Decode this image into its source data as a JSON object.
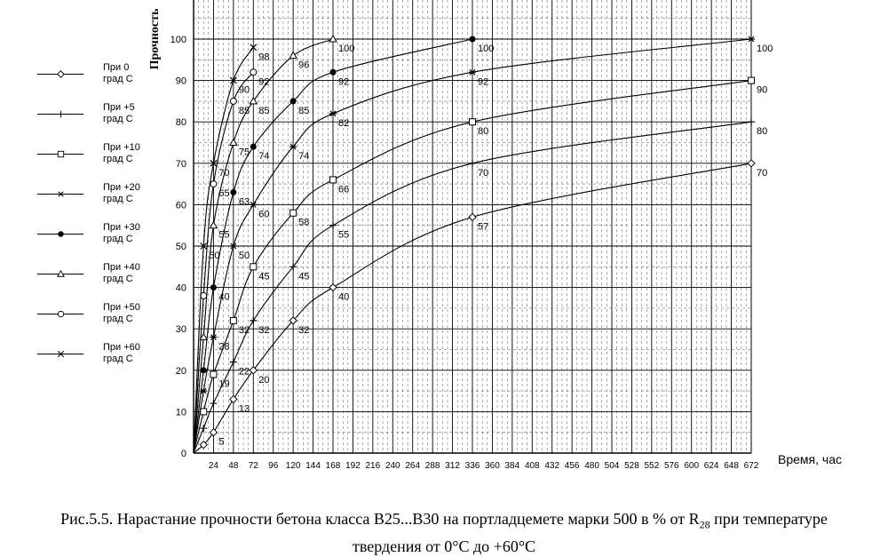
{
  "chart_data": {
    "type": "line",
    "ylabel": "Прочность",
    "xlabel": "Время, час",
    "xlim": [
      0,
      672
    ],
    "ylim": [
      0,
      100
    ],
    "x_ticks": [
      24,
      48,
      72,
      96,
      120,
      144,
      168,
      192,
      216,
      240,
      264,
      288,
      312,
      336,
      360,
      384,
      408,
      432,
      456,
      480,
      504,
      528,
      552,
      576,
      600,
      624,
      648,
      672
    ],
    "y_ticks": [
      0,
      10,
      20,
      30,
      40,
      50,
      60,
      70,
      80,
      90,
      100
    ],
    "grid": true,
    "legend_position": "left",
    "series": [
      {
        "name": "При 0 град С",
        "marker": "diamond",
        "x": [
          0,
          12,
          24,
          48,
          72,
          120,
          168,
          336,
          672
        ],
        "y": [
          0,
          2,
          5,
          13,
          20,
          32,
          40,
          57,
          70
        ]
      },
      {
        "name": "При +5 град С",
        "marker": "plus",
        "x": [
          0,
          12,
          24,
          48,
          72,
          120,
          168,
          336,
          672
        ],
        "y": [
          0,
          6,
          12,
          22,
          32,
          45,
          55,
          70,
          80
        ]
      },
      {
        "name": "При +10 град С",
        "marker": "square",
        "x": [
          0,
          12,
          24,
          48,
          72,
          120,
          168,
          336,
          672
        ],
        "y": [
          0,
          10,
          19,
          32,
          45,
          58,
          66,
          80,
          90
        ]
      },
      {
        "name": "При +20 град С",
        "marker": "asterisk",
        "x": [
          0,
          12,
          24,
          48,
          72,
          120,
          168,
          336,
          672
        ],
        "y": [
          0,
          15,
          28,
          50,
          60,
          74,
          82,
          92,
          100
        ]
      },
      {
        "name": "При +30 град С",
        "marker": "dot",
        "x": [
          0,
          12,
          24,
          48,
          72,
          120,
          168,
          336
        ],
        "y": [
          0,
          20,
          40,
          63,
          74,
          85,
          92,
          100
        ]
      },
      {
        "name": "При +40 град С",
        "marker": "triangle",
        "x": [
          0,
          12,
          24,
          48,
          72,
          120,
          168
        ],
        "y": [
          0,
          28,
          55,
          75,
          85,
          96,
          100
        ]
      },
      {
        "name": "При +50 град С",
        "marker": "circle",
        "x": [
          0,
          12,
          24,
          48,
          72
        ],
        "y": [
          0,
          38,
          65,
          85,
          92
        ]
      },
      {
        "name": "При +60 град С",
        "marker": "cross",
        "x": [
          0,
          12,
          24,
          48,
          72
        ],
        "y": [
          0,
          50,
          70,
          90,
          98
        ]
      }
    ],
    "data_labels": [
      {
        "x": 24,
        "y": 5,
        "text": "5"
      },
      {
        "x": 48,
        "y": 13,
        "text": "13"
      },
      {
        "x": 72,
        "y": 20,
        "text": "20"
      },
      {
        "x": 120,
        "y": 32,
        "text": "32"
      },
      {
        "x": 168,
        "y": 40,
        "text": "40"
      },
      {
        "x": 336,
        "y": 57,
        "text": "57"
      },
      {
        "x": 672,
        "y": 70,
        "text": "70"
      },
      {
        "x": 48,
        "y": 22,
        "text": "22"
      },
      {
        "x": 72,
        "y": 32,
        "text": "32"
      },
      {
        "x": 120,
        "y": 45,
        "text": "45"
      },
      {
        "x": 168,
        "y": 55,
        "text": "55"
      },
      {
        "x": 336,
        "y": 70,
        "text": "70"
      },
      {
        "x": 672,
        "y": 80,
        "text": "80"
      },
      {
        "x": 24,
        "y": 19,
        "text": "19"
      },
      {
        "x": 48,
        "y": 32,
        "text": "32"
      },
      {
        "x": 72,
        "y": 45,
        "text": "45"
      },
      {
        "x": 120,
        "y": 58,
        "text": "58"
      },
      {
        "x": 168,
        "y": 66,
        "text": "66"
      },
      {
        "x": 336,
        "y": 80,
        "text": "80"
      },
      {
        "x": 672,
        "y": 90,
        "text": "90"
      },
      {
        "x": 24,
        "y": 28,
        "text": "28"
      },
      {
        "x": 48,
        "y": 50,
        "text": "50"
      },
      {
        "x": 72,
        "y": 60,
        "text": "60"
      },
      {
        "x": 120,
        "y": 74,
        "text": "74"
      },
      {
        "x": 168,
        "y": 82,
        "text": "82"
      },
      {
        "x": 336,
        "y": 92,
        "text": "92"
      },
      {
        "x": 672,
        "y": 100,
        "text": "100"
      },
      {
        "x": 24,
        "y": 40,
        "text": "40"
      },
      {
        "x": 48,
        "y": 63,
        "text": "63"
      },
      {
        "x": 72,
        "y": 74,
        "text": "74"
      },
      {
        "x": 120,
        "y": 85,
        "text": "85"
      },
      {
        "x": 168,
        "y": 92,
        "text": "92"
      },
      {
        "x": 336,
        "y": 100,
        "text": "100"
      },
      {
        "x": 24,
        "y": 55,
        "text": "55"
      },
      {
        "x": 48,
        "y": 75,
        "text": "75"
      },
      {
        "x": 72,
        "y": 85,
        "text": "85"
      },
      {
        "x": 120,
        "y": 96,
        "text": "96"
      },
      {
        "x": 168,
        "y": 100,
        "text": "100"
      },
      {
        "x": 12,
        "y": 50,
        "text": "50"
      },
      {
        "x": 24,
        "y": 65,
        "text": "65"
      },
      {
        "x": 48,
        "y": 85,
        "text": "85"
      },
      {
        "x": 72,
        "y": 92,
        "text": "92"
      },
      {
        "x": 24,
        "y": 70,
        "text": "70"
      },
      {
        "x": 48,
        "y": 90,
        "text": "90"
      },
      {
        "x": 72,
        "y": 98,
        "text": "98"
      }
    ]
  },
  "legend": {
    "items": [
      {
        "line1": "При 0",
        "line2": "град С",
        "marker": "diamond"
      },
      {
        "line1": "При +5",
        "line2": "град С",
        "marker": "plus"
      },
      {
        "line1": "При +10",
        "line2": "град С",
        "marker": "square"
      },
      {
        "line1": "При +20",
        "line2": "град С",
        "marker": "asterisk"
      },
      {
        "line1": "При +30",
        "line2": "град С",
        "marker": "dot"
      },
      {
        "line1": "При +40",
        "line2": "град С",
        "marker": "triangle"
      },
      {
        "line1": "При +50",
        "line2": "град С",
        "marker": "circle"
      },
      {
        "line1": "При +60",
        "line2": "град С",
        "marker": "cross"
      }
    ]
  },
  "caption": {
    "line1_prefix": "Рис.5.5. Нарастание прочности бетона класса В25...В30 на портладцемете марки 500 в  % от R",
    "line1_sub": "28",
    "line1_suffix": " при температуре",
    "line2": "твердения от 0°С до +60°С"
  }
}
